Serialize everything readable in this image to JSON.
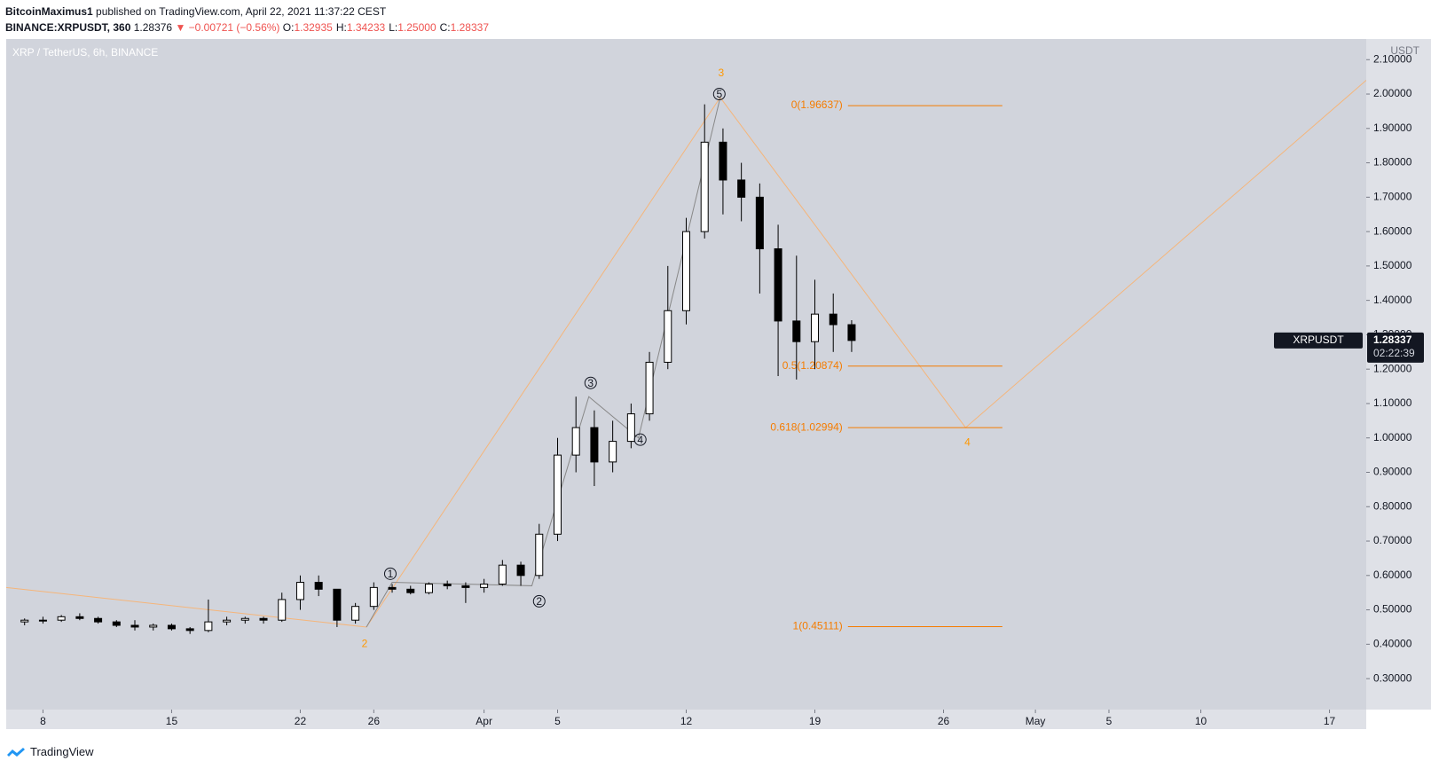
{
  "header": {
    "author": "BitcoinMaximus1",
    "published": "published on TradingView.com, April 22, 2021 11:37:22 CEST",
    "symbol": "BINANCE:XRPUSDT, 360",
    "last": "1.28376",
    "change": "▼ −0.00721 (−0.56%)",
    "ohlc": [
      {
        "label": "O:",
        "value": "1.32935"
      },
      {
        "label": "H:",
        "value": "1.34233"
      },
      {
        "label": "L:",
        "value": "1.25000"
      },
      {
        "label": "C:",
        "value": "1.28337"
      }
    ]
  },
  "footer": {
    "brand": "TradingView"
  },
  "chart_data": {
    "type": "candlestick",
    "title": "XRP / TetherUS, 6h, BINANCE",
    "y_unit": "USDT",
    "x": [
      6,
      7,
      8,
      9,
      10,
      11,
      12,
      13,
      14,
      15,
      16,
      17,
      18,
      19,
      20,
      21,
      22,
      23,
      24,
      25,
      26,
      27,
      28,
      29,
      30,
      31,
      32,
      33,
      34,
      35,
      36,
      37,
      38,
      39,
      40,
      41,
      42,
      43,
      44,
      45,
      46,
      47,
      48,
      49,
      50,
      51
    ],
    "open": [
      0.465,
      0.47,
      0.47,
      0.48,
      0.475,
      0.465,
      0.455,
      0.45,
      0.455,
      0.445,
      0.44,
      0.465,
      0.47,
      0.475,
      0.47,
      0.53,
      0.58,
      0.56,
      0.47,
      0.51,
      0.565,
      0.56,
      0.55,
      0.575,
      0.57,
      0.565,
      0.575,
      0.63,
      0.6,
      0.72,
      0.95,
      1.03,
      0.93,
      0.99,
      1.07,
      1.22,
      1.37,
      1.6,
      1.86,
      1.75,
      1.7,
      1.55,
      1.34,
      1.28,
      1.36,
      1.32935
    ],
    "high": [
      0.475,
      0.48,
      0.485,
      0.49,
      0.48,
      0.47,
      0.47,
      0.46,
      0.46,
      0.45,
      0.53,
      0.48,
      0.48,
      0.48,
      0.55,
      0.6,
      0.6,
      0.56,
      0.52,
      0.58,
      0.575,
      0.57,
      0.58,
      0.585,
      0.58,
      0.59,
      0.645,
      0.64,
      0.75,
      1.0,
      1.12,
      1.08,
      1.05,
      1.1,
      1.25,
      1.5,
      1.64,
      1.97,
      1.9,
      1.8,
      1.74,
      1.62,
      1.53,
      1.46,
      1.42,
      1.34233
    ],
    "low": [
      0.455,
      0.46,
      0.465,
      0.47,
      0.46,
      0.45,
      0.44,
      0.44,
      0.44,
      0.43,
      0.435,
      0.455,
      0.46,
      0.46,
      0.465,
      0.5,
      0.54,
      0.45,
      0.46,
      0.5,
      0.55,
      0.545,
      0.545,
      0.56,
      0.52,
      0.55,
      0.57,
      0.57,
      0.59,
      0.7,
      0.9,
      0.86,
      0.9,
      0.97,
      1.05,
      1.2,
      1.33,
      1.58,
      1.65,
      1.63,
      1.42,
      1.18,
      1.17,
      1.2,
      1.25,
      1.25
    ],
    "close": [
      0.47,
      0.47,
      0.48,
      0.475,
      0.465,
      0.455,
      0.45,
      0.455,
      0.445,
      0.44,
      0.465,
      0.47,
      0.475,
      0.47,
      0.53,
      0.58,
      0.56,
      0.47,
      0.51,
      0.565,
      0.56,
      0.55,
      0.575,
      0.57,
      0.565,
      0.575,
      0.63,
      0.6,
      0.72,
      0.95,
      1.03,
      0.93,
      0.99,
      1.07,
      1.22,
      1.37,
      1.6,
      1.86,
      1.75,
      1.7,
      1.55,
      1.34,
      1.28,
      1.36,
      1.32935,
      1.28337
    ],
    "up_color": "#ffffff",
    "down_color": "#000000",
    "wick_color": "#000000",
    "xlim": [
      5,
      79
    ],
    "ylim": [
      0.21,
      2.16
    ],
    "xticks": [
      {
        "value": 7,
        "label": "8"
      },
      {
        "value": 14,
        "label": "15"
      },
      {
        "value": 21,
        "label": "22"
      },
      {
        "value": 25,
        "label": "26"
      },
      {
        "value": 31,
        "label": "Apr"
      },
      {
        "value": 35,
        "label": "5"
      },
      {
        "value": 42,
        "label": "12"
      },
      {
        "value": 49,
        "label": "19"
      },
      {
        "value": 56,
        "label": "26"
      },
      {
        "value": 61,
        "label": "May"
      },
      {
        "value": 65,
        "label": "5"
      },
      {
        "value": 70,
        "label": "10"
      },
      {
        "value": 77,
        "label": "17"
      }
    ],
    "yticks": [
      {
        "value": 0.3,
        "label": "0.30000"
      },
      {
        "value": 0.4,
        "label": "0.40000"
      },
      {
        "value": 0.5,
        "label": "0.50000"
      },
      {
        "value": 0.6,
        "label": "0.60000"
      },
      {
        "value": 0.7,
        "label": "0.70000"
      },
      {
        "value": 0.8,
        "label": "0.80000"
      },
      {
        "value": 0.9,
        "label": "0.90000"
      },
      {
        "value": 1.0,
        "label": "1.00000"
      },
      {
        "value": 1.1,
        "label": "1.10000"
      },
      {
        "value": 1.2,
        "label": "1.20000"
      },
      {
        "value": 1.3,
        "label": "1.30000"
      },
      {
        "value": 1.4,
        "label": "1.40000"
      },
      {
        "value": 1.5,
        "label": "1.50000"
      },
      {
        "value": 1.6,
        "label": "1.60000"
      },
      {
        "value": 1.7,
        "label": "1.70000"
      },
      {
        "value": 1.8,
        "label": "1.80000"
      },
      {
        "value": 1.9,
        "label": "1.90000"
      },
      {
        "value": 2.0,
        "label": "2.00000"
      },
      {
        "value": 2.1,
        "label": "2.10000"
      }
    ],
    "price_tag": {
      "name": "XRPUSDT",
      "value": 1.28337,
      "label": "1.28337",
      "countdown": "02:22:39"
    },
    "fib_color": "#f57c00",
    "fib_x": [
      50.8,
      59.2
    ],
    "fib_levels": [
      {
        "value": 1.96637,
        "label": "0(1.96637)"
      },
      {
        "value": 1.20874,
        "label": "0.5(1.20874)"
      },
      {
        "value": 1.02994,
        "label": "0.618(1.02994)"
      },
      {
        "value": 0.45111,
        "label": "1(0.45111)"
      }
    ],
    "projection": {
      "color": "#f5b57a",
      "x": [
        5,
        24.6,
        43.85,
        57.2,
        79
      ],
      "y": [
        0.565,
        0.45,
        1.99,
        1.03,
        2.04
      ]
    },
    "subwaves": {
      "color": "#888888",
      "x": [
        24.6,
        26,
        33.6,
        36.7,
        39.4,
        43.85
      ],
      "y": [
        0.45,
        0.58,
        0.57,
        1.12,
        1.0,
        1.99
      ]
    },
    "wave_labels": [
      {
        "text": "2",
        "x": 24.5,
        "y": 0.4
      },
      {
        "text": "3",
        "x": 43.9,
        "y": 2.06
      },
      {
        "text": "4",
        "x": 57.3,
        "y": 0.985
      }
    ],
    "circled_labels": [
      {
        "text": "1",
        "x": 25.9,
        "y": 0.605
      },
      {
        "text": "2",
        "x": 34.0,
        "y": 0.525
      },
      {
        "text": "3",
        "x": 36.8,
        "y": 1.16
      },
      {
        "text": "4",
        "x": 39.5,
        "y": 0.995
      },
      {
        "text": "5",
        "x": 43.8,
        "y": 2.0
      }
    ]
  }
}
